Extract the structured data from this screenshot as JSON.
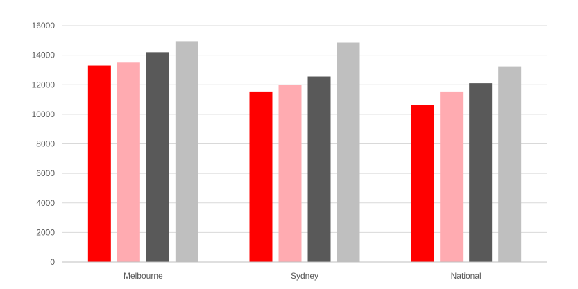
{
  "chart_data": {
    "type": "bar",
    "categories": [
      "Melbourne",
      "Sydney",
      "National"
    ],
    "series": [
      {
        "color": "#ff0000",
        "values": [
          13300,
          11500,
          10650
        ]
      },
      {
        "color": "#ffabb1",
        "values": [
          13500,
          12000,
          11500
        ]
      },
      {
        "color": "#595959",
        "values": [
          14200,
          12550,
          12100
        ]
      },
      {
        "color": "#bfbfbf",
        "values": [
          14950,
          14850,
          13250
        ]
      }
    ],
    "yticks": [
      0,
      2000,
      4000,
      6000,
      8000,
      10000,
      12000,
      14000,
      16000
    ],
    "ylim": [
      0,
      16000
    ],
    "grid": true,
    "legend": "none"
  }
}
